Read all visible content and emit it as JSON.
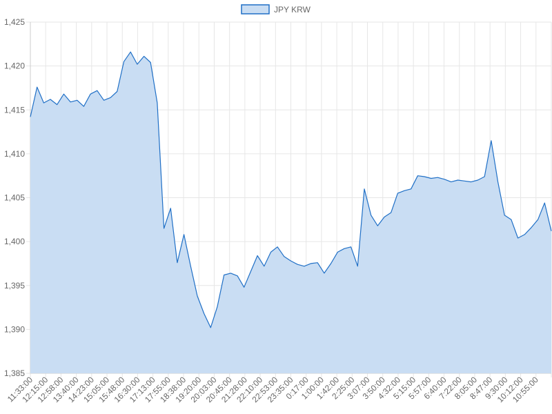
{
  "chart_data": {
    "type": "area",
    "title": "",
    "xlabel": "",
    "ylabel": "",
    "legend": {
      "position": "top-center"
    },
    "grid": true,
    "ylim": [
      1385,
      1425
    ],
    "yticks": [
      "1,385",
      "1,390",
      "1,395",
      "1,400",
      "1,405",
      "1,410",
      "1,415",
      "1,420",
      "1,425"
    ],
    "yticks_values": [
      1385,
      1390,
      1395,
      1400,
      1405,
      1410,
      1415,
      1420,
      1425
    ],
    "x_tick_labels": [
      "11:33:00",
      "12:15:00",
      "12:58:00",
      "13:40:00",
      "14:23:00",
      "15:05:00",
      "15:48:00",
      "16:30:00",
      "17:13:00",
      "17:55:00",
      "18:38:00",
      "19:20:00",
      "20:03:00",
      "20:45:00",
      "21:28:00",
      "22:10:00",
      "22:53:00",
      "23:35:00",
      "0:17:00",
      "1:00:00",
      "1:42:00",
      "2:25:00",
      "3:07:00",
      "3:50:00",
      "4:32:00",
      "5:15:00",
      "5:57:00",
      "6:40:00",
      "7:22:00",
      "8:05:00",
      "8:47:00",
      "9:30:00",
      "10:12:00",
      "10:55:00"
    ],
    "series": [
      {
        "name": "JPY KRW",
        "color": "#1f6fc6",
        "fill": "#c9ddf3",
        "values": [
          1414.2,
          1417.6,
          1415.8,
          1416.2,
          1415.6,
          1416.8,
          1415.9,
          1416.1,
          1415.4,
          1416.8,
          1417.2,
          1416.1,
          1416.4,
          1417.1,
          1420.5,
          1421.6,
          1420.2,
          1421.1,
          1420.4,
          1415.8,
          1401.5,
          1403.8,
          1397.6,
          1400.8,
          1397.2,
          1393.8,
          1391.8,
          1390.2,
          1392.6,
          1396.2,
          1396.4,
          1396.1,
          1394.8,
          1396.6,
          1398.4,
          1397.2,
          1398.8,
          1399.4,
          1398.3,
          1397.8,
          1397.4,
          1397.2,
          1397.5,
          1397.6,
          1396.4,
          1397.5,
          1398.8,
          1399.2,
          1399.4,
          1397.2,
          1406.0,
          1403.0,
          1401.8,
          1402.8,
          1403.3,
          1405.5,
          1405.8,
          1406.0,
          1407.5,
          1407.4,
          1407.2,
          1407.3,
          1407.1,
          1406.8,
          1407.0,
          1406.9,
          1406.8,
          1407.0,
          1407.4,
          1411.5,
          1406.8,
          1403.0,
          1402.5,
          1400.4,
          1400.8,
          1401.6,
          1402.5,
          1404.4,
          1401.2
        ]
      }
    ]
  }
}
